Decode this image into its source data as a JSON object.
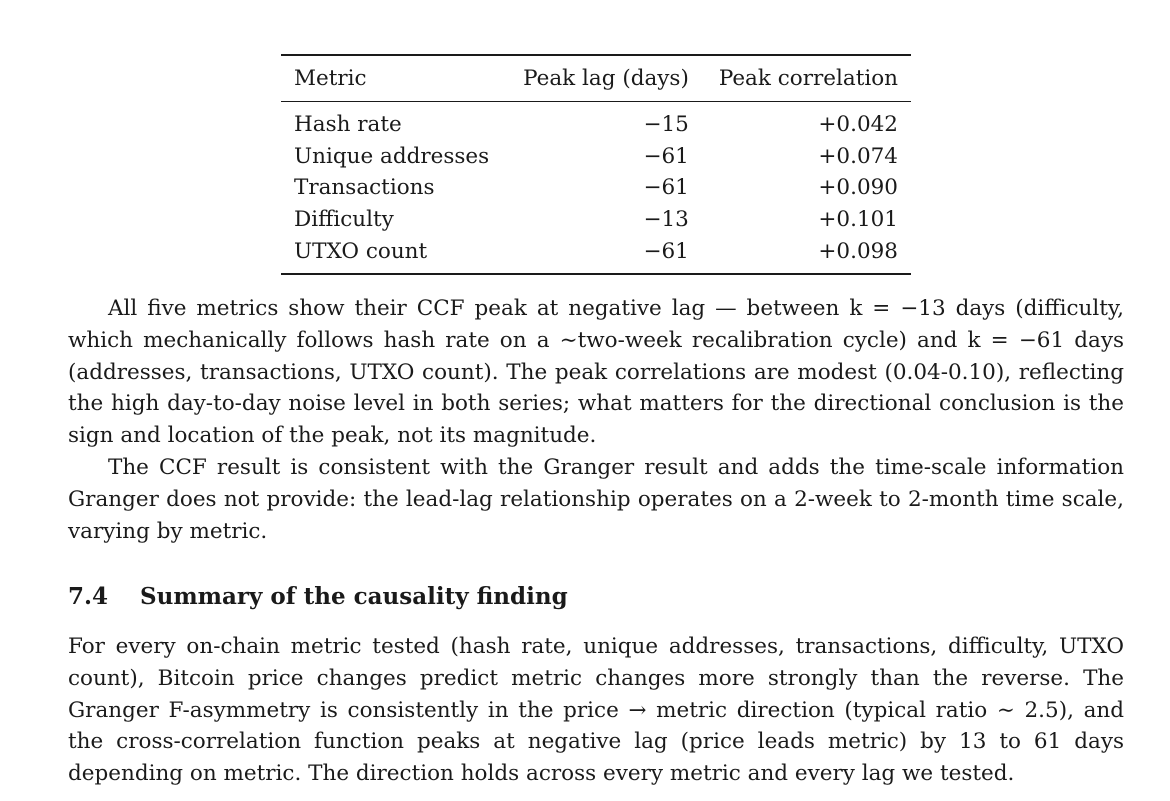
{
  "table": {
    "headers": [
      "Metric",
      "Peak lag (days)",
      "Peak correlation"
    ],
    "rows": [
      [
        "Hash rate",
        "−15",
        "+0.042"
      ],
      [
        "Unique addresses",
        "−61",
        "+0.074"
      ],
      [
        "Transactions",
        "−61",
        "+0.090"
      ],
      [
        "Difficulty",
        "−13",
        "+0.101"
      ],
      [
        "UTXO count",
        "−61",
        "+0.098"
      ]
    ]
  },
  "paragraphs": [
    "All five metrics show their CCF peak at negative lag — between k = −13 days (difficulty, which mechanically follows hash rate on a ∼two-week recalibration cycle) and k = −61 days (addresses, transactions, UTXO count). The peak correlations are modest (0.04-0.10), reflecting the high day-to-day noise level in both series; what matters for the directional conclusion is the sign and location of the peak, not its magnitude.",
    "The CCF result is consistent with the Granger result and adds the time-scale information Granger does not provide: the lead-lag relationship operates on a 2-week to 2-month time scale, varying by metric."
  ],
  "section": {
    "number": "7.4",
    "title": "Summary of the causality finding",
    "paragraph": "For every on-chain metric tested (hash rate, unique addresses, transactions, difficulty, UTXO count), Bitcoin price changes predict metric changes more strongly than the reverse. The Granger F-asymmetry is consistently in the price → metric direction (typical ratio ∼ 2.5), and the cross-correlation function peaks at negative lag (price leads metric) by 13 to 61 days depending on metric. The direction holds across every metric and every lag we tested."
  }
}
